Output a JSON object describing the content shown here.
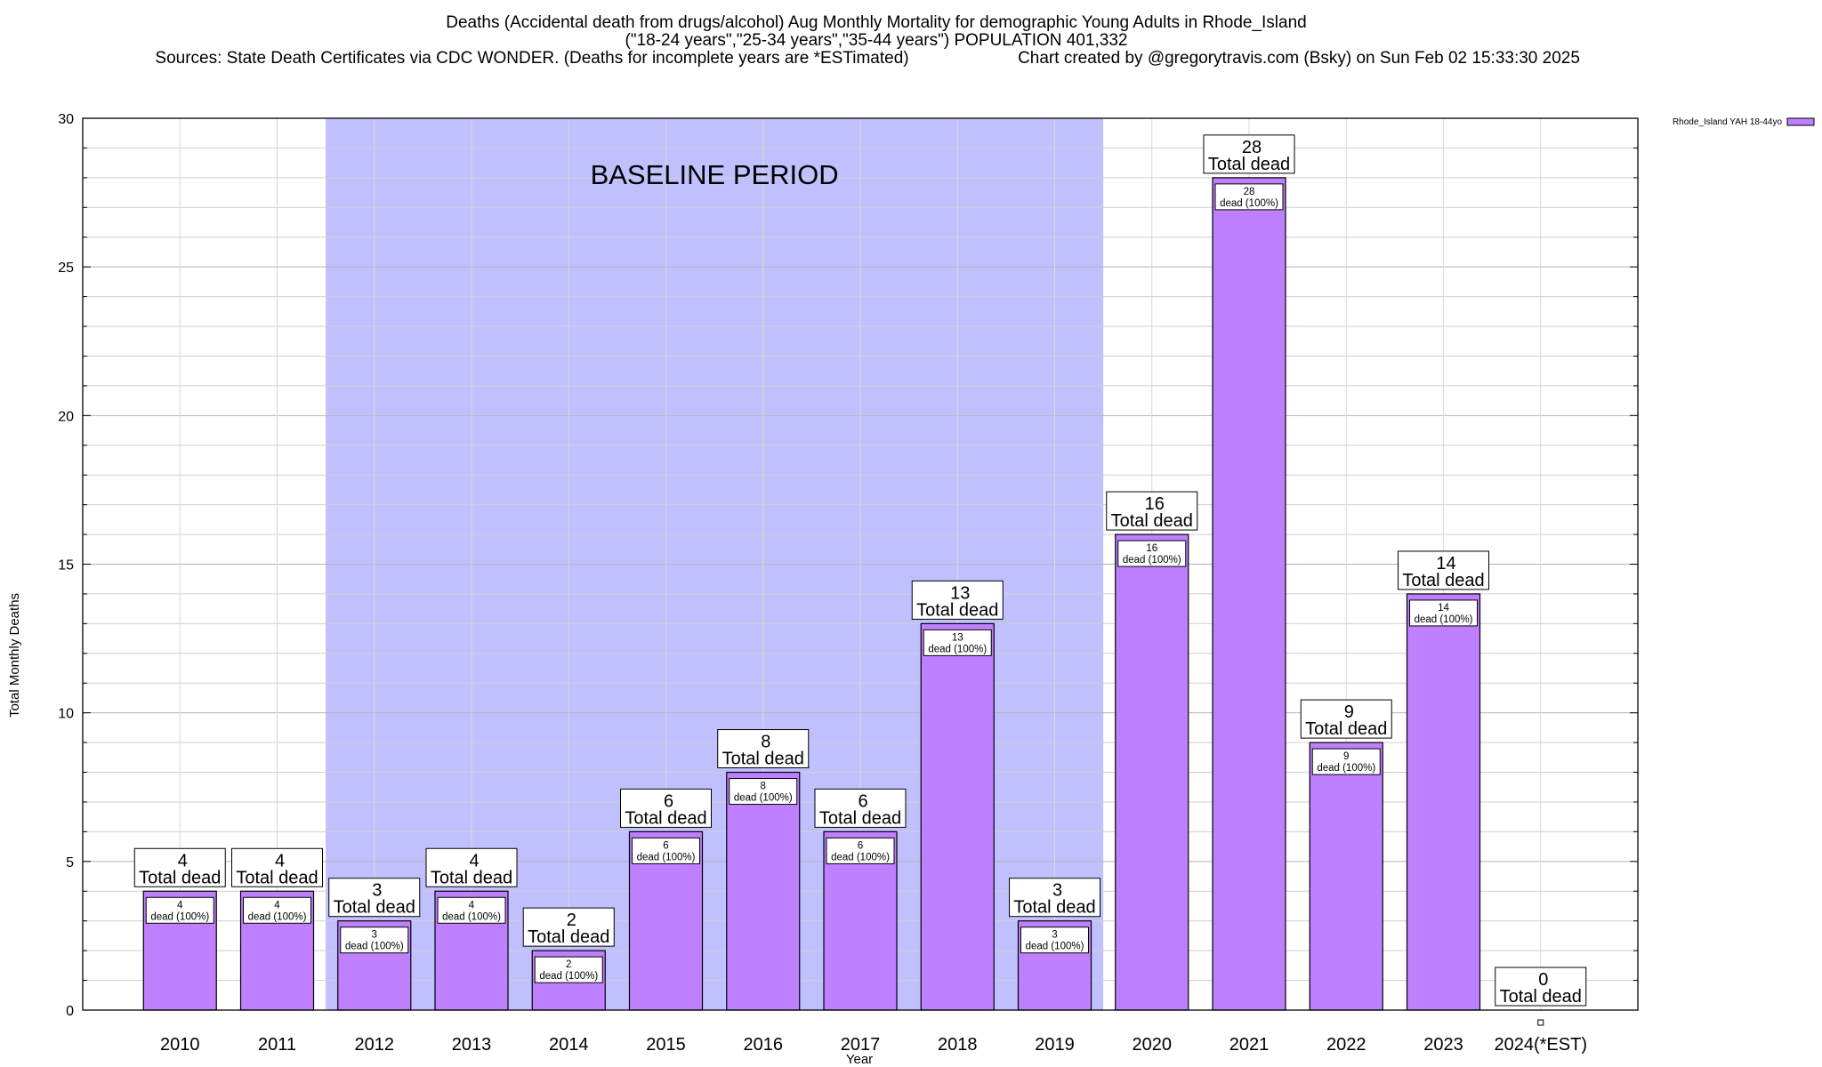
{
  "header": {
    "title_line1": "Deaths (Accidental death from drugs/alcohol) Aug Monthly Mortality for demographic Young Adults in Rhode_Island",
    "title_line2": "(\"18-24 years\",\"25-34 years\",\"35-44 years\") POPULATION 401,332",
    "sources": "Sources: State Death Certificates via CDC WONDER. (Deaths for incomplete years are *ESTimated)",
    "credit": "Chart created by @gregorytravis.com (Bsky) on Sun Feb 02 15:33:30 2025"
  },
  "chart_data": {
    "type": "bar",
    "categories": [
      "2010",
      "2011",
      "2012",
      "2013",
      "2014",
      "2015",
      "2016",
      "2017",
      "2018",
      "2019",
      "2020",
      "2021",
      "2022",
      "2023",
      "2024(*EST)"
    ],
    "series": [
      {
        "name": "Rhode_Island YAH 18-44yo",
        "values": [
          4,
          4,
          3,
          4,
          2,
          6,
          8,
          6,
          13,
          3,
          16,
          28,
          9,
          14,
          0
        ],
        "color": "#bf80ff"
      }
    ],
    "xlabel": "Year",
    "ylabel": "Total Monthly Deaths",
    "ylim": [
      0,
      30
    ],
    "yticks": [
      0,
      5,
      10,
      15,
      20,
      25,
      30
    ],
    "grid": true,
    "legend_position": "top-right",
    "total_label_suffix": "Total dead",
    "segment_label_suffix": "dead (100%)",
    "baseline_period": {
      "label": "BASELINE PERIOD",
      "from": "2012",
      "to": "2019",
      "color": "#c0c0ff"
    }
  }
}
